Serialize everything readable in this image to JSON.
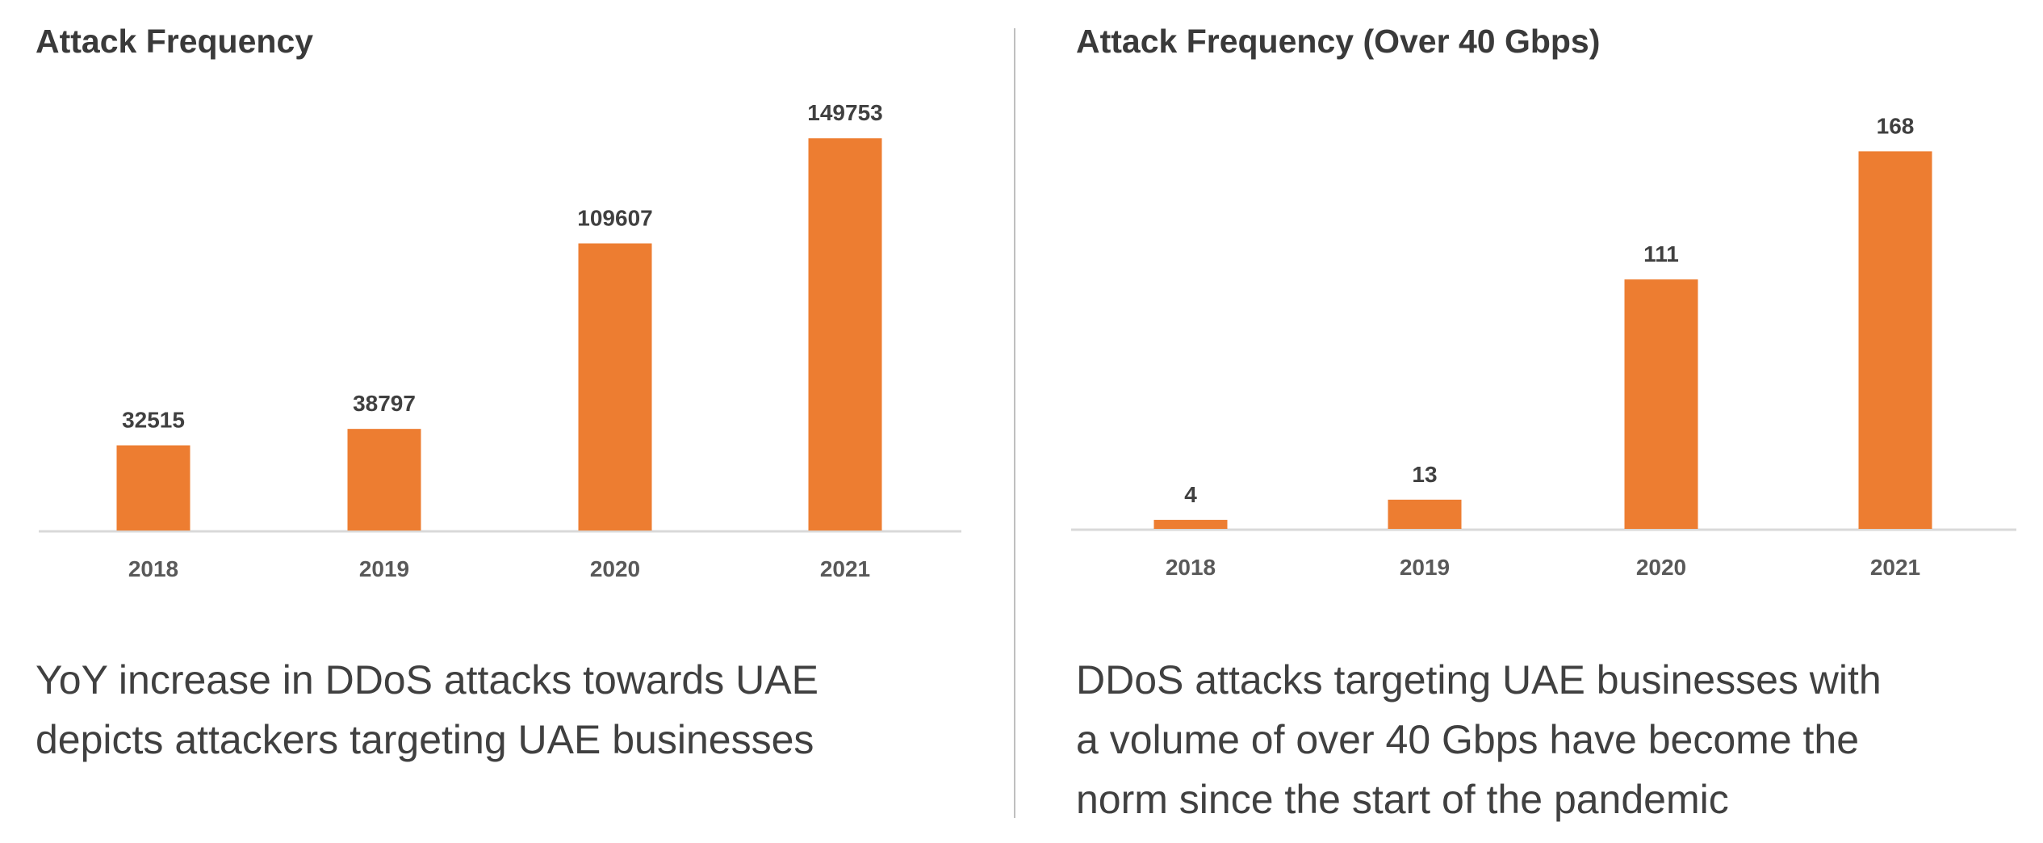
{
  "chart_data": [
    {
      "type": "bar",
      "title": "Attack Frequency",
      "categories": [
        "2018",
        "2019",
        "2020",
        "2021"
      ],
      "values": [
        32515,
        38797,
        109607,
        149753
      ],
      "data_labels": [
        "32515",
        "38797",
        "109607",
        "149753"
      ],
      "ylim": [
        0,
        160000
      ],
      "grid": false,
      "color": "#ED7D31",
      "caption": [
        "YoY increase in DDoS attacks towards UAE",
        "depicts attackers targeting UAE businesses"
      ]
    },
    {
      "type": "bar",
      "title": "Attack Frequency (Over 40 Gbps)",
      "categories": [
        "2018",
        "2019",
        "2020",
        "2021"
      ],
      "values": [
        4,
        13,
        111,
        168
      ],
      "data_labels": [
        "4",
        "13",
        "111",
        "168"
      ],
      "ylim": [
        0,
        180
      ],
      "grid": false,
      "color": "#ED7D31",
      "caption": [
        "DDoS attacks targeting UAE businesses with",
        "a volume of over 40 Gbps have become the",
        "norm since the start of the pandemic"
      ]
    }
  ]
}
